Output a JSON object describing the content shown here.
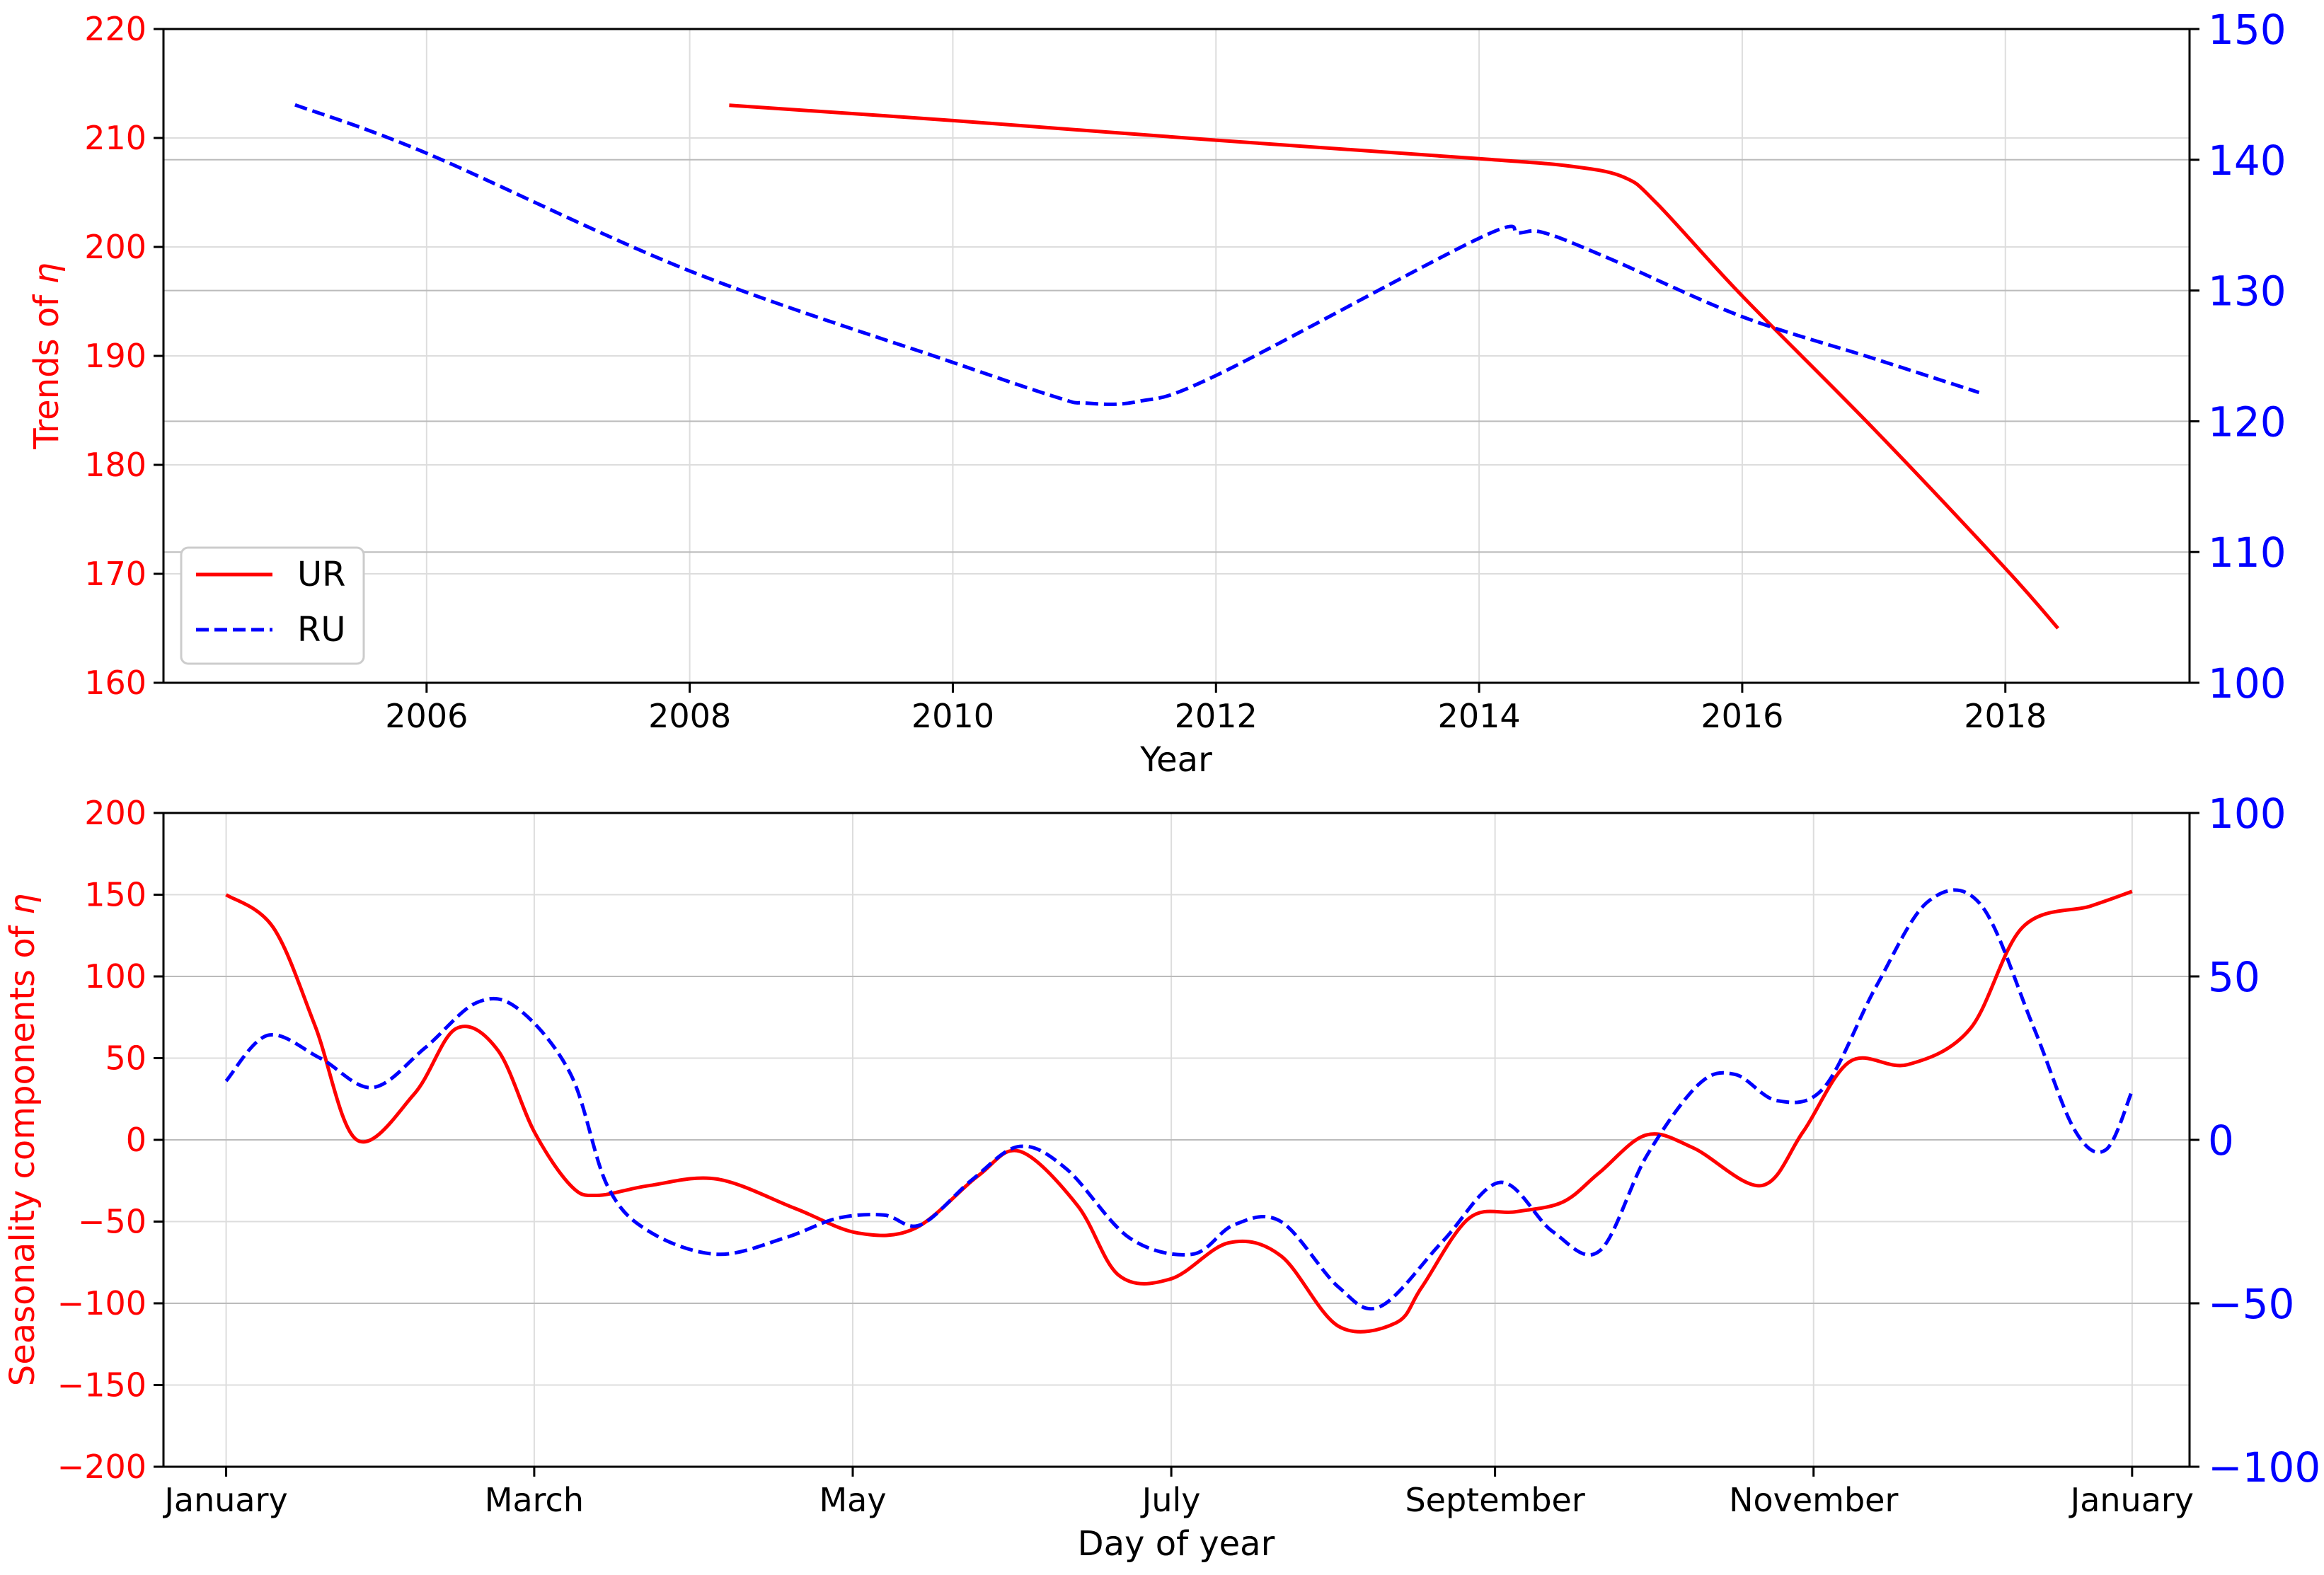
{
  "colors": {
    "ur": "#ff0000",
    "ru": "#0000ff",
    "grid": "#dddddd",
    "axis": "#000000"
  },
  "legend": {
    "ur_label": "UR",
    "ru_label": "RU"
  },
  "chart_data": [
    {
      "type": "line",
      "title": "",
      "xlabel": "Year",
      "ylabel": "Trends of η",
      "ylabel_prefix": "Trends of ",
      "ylabel_symbol": "η",
      "xlim": [
        2004.0,
        2019.4
      ],
      "ylim_left": [
        160,
        220
      ],
      "ylim_right": [
        100,
        150
      ],
      "x_ticks": [
        2006,
        2008,
        2010,
        2012,
        2014,
        2016,
        2018
      ],
      "x_tick_labels": [
        "2006",
        "2008",
        "2010",
        "2012",
        "2014",
        "2016",
        "2018"
      ],
      "y_ticks_left": [
        160,
        170,
        180,
        190,
        200,
        210,
        220
      ],
      "y_tick_labels_left": [
        "160",
        "170",
        "180",
        "190",
        "200",
        "210",
        "220"
      ],
      "y_ticks_right": [
        100,
        110,
        120,
        130,
        140,
        150
      ],
      "y_tick_labels_right": [
        "100",
        "110",
        "120",
        "130",
        "140",
        "150"
      ],
      "grid": true,
      "legend_position": "lower-left",
      "series": [
        {
          "name": "UR",
          "axis": "left",
          "style": "solid",
          "x": [
            2008.3,
            2010,
            2012,
            2014,
            2014.7,
            2015.1,
            2015.35,
            2016,
            2017,
            2018,
            2018.4
          ],
          "y": [
            213,
            211.6,
            209.8,
            208.1,
            207.4,
            206.4,
            204,
            195.5,
            183.3,
            170.5,
            165
          ]
        },
        {
          "name": "RU",
          "axis": "right",
          "style": "dashed",
          "x": [
            2005.0,
            2006,
            2008,
            2010,
            2010.8,
            2011.0,
            2011.4,
            2012,
            2014,
            2014.3,
            2014.5,
            2015,
            2016,
            2017,
            2017.8
          ],
          "y": [
            144.2,
            140.5,
            131.5,
            124.5,
            121.8,
            121.4,
            121.5,
            123.5,
            134,
            134.4,
            134.4,
            132.4,
            128,
            124.8,
            122.2
          ]
        }
      ]
    },
    {
      "type": "line",
      "title": "",
      "xlabel": "Day of year",
      "ylabel": "Seasonality components of η",
      "ylabel_prefix": "Seasonality components of ",
      "ylabel_symbol": "η",
      "xlim": [
        -11,
        377
      ],
      "ylim_left": [
        -200,
        200
      ],
      "ylim_right": [
        -100,
        100
      ],
      "x_ticks": [
        1,
        60,
        121,
        182,
        244,
        305,
        366
      ],
      "x_tick_labels": [
        "January",
        "March",
        "May",
        "July",
        "September",
        "November",
        "January"
      ],
      "y_ticks_left": [
        -200,
        -150,
        -100,
        -50,
        0,
        50,
        100,
        150,
        200
      ],
      "y_tick_labels_left": [
        "−200",
        "−150",
        "−100",
        "−50",
        "0",
        "50",
        "100",
        "150",
        "200"
      ],
      "y_ticks_right": [
        -100,
        -50,
        0,
        50,
        100
      ],
      "y_tick_labels_right": [
        "−100",
        "−50",
        "0",
        "50",
        "100"
      ],
      "grid": true,
      "legend_position": "none",
      "series": [
        {
          "name": "UR",
          "axis": "left",
          "style": "solid",
          "x": [
            1,
            10,
            18,
            26,
            37,
            45,
            53,
            60,
            67,
            72,
            82,
            95,
            110,
            122,
            133,
            145,
            153,
            164,
            172,
            182,
            193,
            203,
            214,
            225,
            230,
            239,
            248,
            257,
            264,
            273,
            282,
            295,
            303,
            312,
            323,
            335,
            345,
            358,
            366
          ],
          "y": [
            150,
            130,
            70,
            0,
            28,
            68,
            55,
            5,
            -28,
            -34,
            -28,
            -24,
            -42,
            -57,
            -54,
            -22,
            -7,
            -40,
            -83,
            -85,
            -63,
            -71,
            -114,
            -112,
            -90,
            -48,
            -44,
            -38,
            -20,
            3,
            -5,
            -28,
            5,
            48,
            46,
            68,
            130,
            143,
            152
          ]
        },
        {
          "name": "RU",
          "axis": "right",
          "style": "dashed",
          "x": [
            1,
            9,
            19,
            29,
            39,
            49,
            57,
            67,
            74,
            82,
            95,
            108,
            118,
            127,
            134,
            144,
            153,
            162,
            174,
            186,
            194,
            203,
            214,
            222,
            234,
            245,
            255,
            264,
            273,
            283,
            290,
            298,
            307,
            317,
            327,
            337,
            347,
            355,
            361,
            366
          ],
          "y": [
            18,
            32,
            25,
            16,
            28,
            42,
            40,
            20,
            -14,
            -28,
            -35,
            -30,
            -24,
            -23,
            -26,
            -12,
            -2,
            -9,
            -30,
            -35,
            -26,
            -25,
            -45,
            -51,
            -31,
            -13,
            -28,
            -34,
            -5,
            17,
            20,
            12,
            16,
            47,
            73,
            72,
            35,
            3,
            -3,
            15
          ]
        }
      ]
    }
  ]
}
